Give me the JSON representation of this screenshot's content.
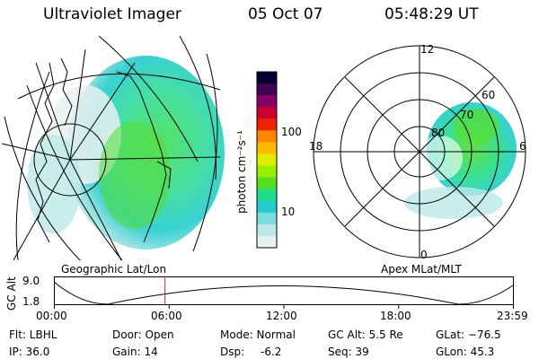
{
  "header": {
    "title": "Ultraviolet Imager",
    "date": "05 Oct 07",
    "time": "05:48:29 UT"
  },
  "panels": {
    "geo_label": "Geographic Lat/Lon",
    "apex_label": "Apex MLat/MLT"
  },
  "colorbar": {
    "label": "photon cm⁻²s⁻¹",
    "tick_100": "100",
    "tick_10": "10",
    "colors": [
      "#000033",
      "#440055",
      "#880066",
      "#cc0033",
      "#ee2200",
      "#ff8800",
      "#ffbb00",
      "#ddee00",
      "#99ee00",
      "#55dd22",
      "#22dd88",
      "#22cccc",
      "#77dddd",
      "#bbe8e8",
      "#e8f0f0"
    ]
  },
  "polar": {
    "mlt": {
      "top": "12",
      "left": "18",
      "right": "6",
      "bottom": "0"
    },
    "lat": {
      "l60": "60",
      "l70": "70",
      "l80": "80"
    }
  },
  "altitude": {
    "axis_label": "GC Alt",
    "y_max": "9.0",
    "y_min": "1.8",
    "x_ticks": [
      "00:00",
      "06:00",
      "12:00",
      "18:00",
      "23:59"
    ],
    "marker_time_hours": 5.81
  },
  "footer": {
    "flt": "Flt: LBHL",
    "ip": "IP: 36.0",
    "door": "Door: Open",
    "gain": "Gain: 14",
    "mode": "Mode: Normal",
    "dsp_label": "Dsp:",
    "dsp_value": "-6.2",
    "gcalt": "GC Alt: 5.5 Re",
    "seq": "Seq: 39",
    "glat": "GLat: −76.5",
    "glon": "GLon:  45.3"
  }
}
